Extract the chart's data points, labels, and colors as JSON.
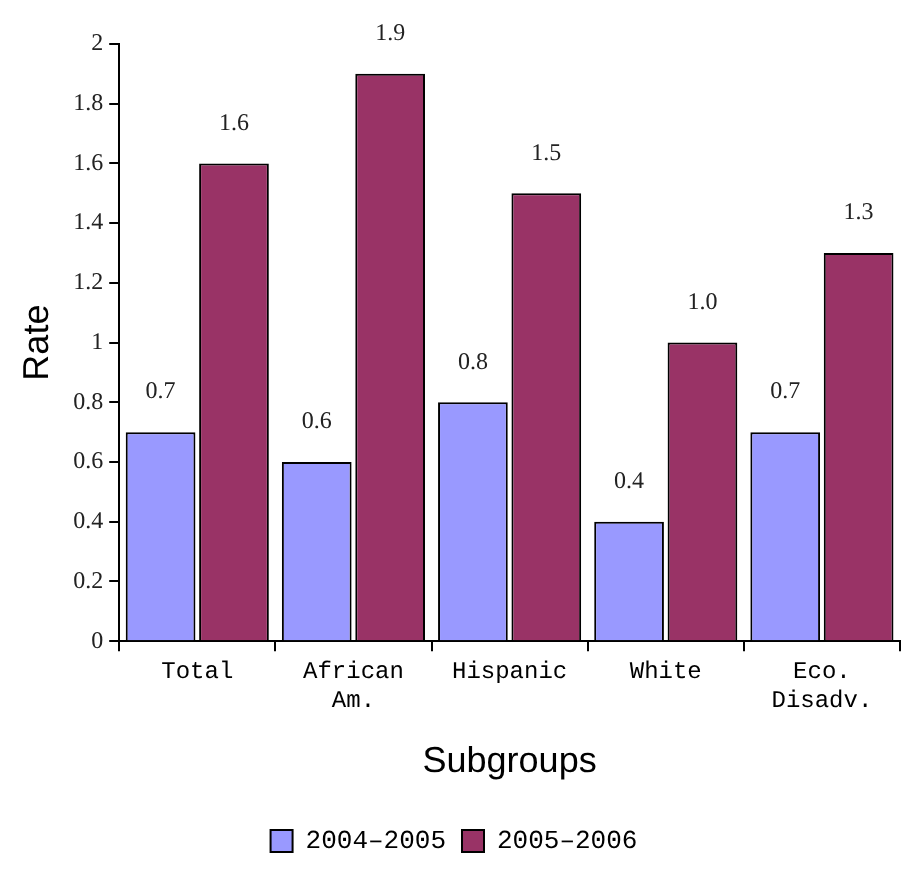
{
  "chart_data": {
    "type": "bar",
    "xlabel": "Subgroups",
    "ylabel": "Rate",
    "categories": [
      "Total",
      "African Am.",
      "Hispanic",
      "White",
      "Eco. Disadv."
    ],
    "series": [
      {
        "name": "2004–2005",
        "color": "#9999ff",
        "values": [
          0.7,
          0.6,
          0.8,
          0.4,
          0.7
        ],
        "value_labels": [
          "0.7",
          "0.6",
          "0.8",
          "0.4",
          "0.7"
        ]
      },
      {
        "name": "2005–2006",
        "color": "#993366",
        "values": [
          1.6,
          1.9,
          1.5,
          1.0,
          1.3
        ],
        "value_labels": [
          "1.6",
          "1.9",
          "1.5",
          "1.0",
          "1.3"
        ]
      }
    ],
    "ylim": [
      0,
      2
    ],
    "yticks": [
      0,
      0.2,
      0.4,
      0.6,
      0.8,
      1,
      1.2,
      1.4,
      1.6,
      1.8,
      2
    ],
    "grid": false,
    "legend": "bottom"
  }
}
